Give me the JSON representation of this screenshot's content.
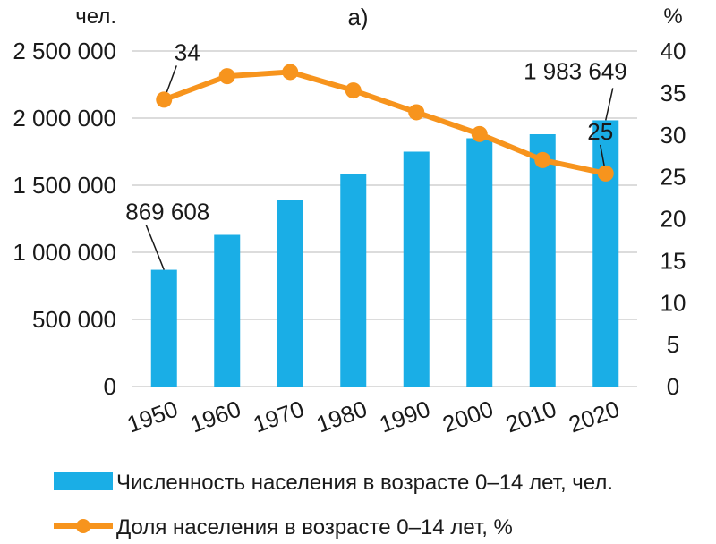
{
  "chart_data": {
    "type": "bar",
    "title": "а)",
    "categories": [
      "1950",
      "1960",
      "1970",
      "1980",
      "1990",
      "2000",
      "2010",
      "2020"
    ],
    "series": [
      {
        "name": "Численность населения в возрасте 0–14 лет, чел.",
        "type": "bar",
        "axis": "left",
        "color": "#1aaee6",
        "values": [
          869608,
          1130000,
          1390000,
          1580000,
          1750000,
          1850000,
          1880000,
          1983649
        ]
      },
      {
        "name": "Доля населения в возрасте 0–14 лет, %",
        "type": "line",
        "axis": "right",
        "color": "#f7941d",
        "values": [
          34.2,
          37.0,
          37.5,
          35.3,
          32.7,
          30.1,
          27.0,
          25.4
        ]
      }
    ],
    "y_left": {
      "unit": "чел.",
      "range": [
        0,
        2500000
      ],
      "ticks": [
        "0",
        "500 000",
        "1 000 000",
        "1 500 000",
        "2 000 000",
        "2 500 000"
      ]
    },
    "y_right": {
      "unit": "%",
      "range": [
        0,
        40
      ],
      "ticks": [
        "0",
        "5",
        "10",
        "15",
        "20",
        "25",
        "30",
        "35",
        "40"
      ]
    },
    "annotations": [
      {
        "text": "869 608",
        "series": 0,
        "index": 0
      },
      {
        "text": "1 983 649",
        "series": 0,
        "index": 7
      },
      {
        "text": "34",
        "series": 1,
        "index": 0
      },
      {
        "text": "25",
        "series": 1,
        "index": 7
      }
    ],
    "grid": true,
    "legend_position": "bottom"
  }
}
